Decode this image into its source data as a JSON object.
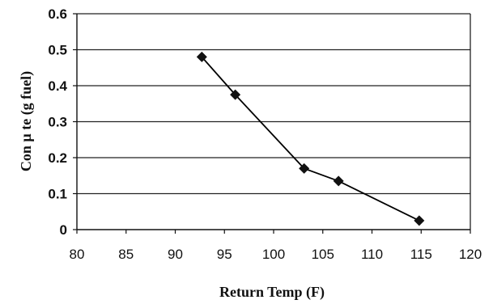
{
  "chart_data": {
    "type": "line",
    "title": "",
    "xlabel": "Return Temp (F)",
    "ylabel": "Con µ te (g fuel)",
    "xlim": [
      80,
      120
    ],
    "ylim": [
      0,
      0.6
    ],
    "x_ticks": [
      "80",
      "85",
      "90",
      "95",
      "100",
      "105",
      "110",
      "115",
      "120"
    ],
    "y_ticks": [
      "0",
      "0.1",
      "0.2",
      "0.3",
      "0.4",
      "0.5",
      "0.6"
    ],
    "grid": "horizontal",
    "series": [
      {
        "marker": "diamond",
        "x": [
          92.7,
          96.1,
          103.1,
          106.6,
          114.8
        ],
        "y": [
          0.48,
          0.375,
          0.17,
          0.135,
          0.025
        ]
      }
    ],
    "colors": {
      "line": "#000000",
      "marker": "#111111",
      "grid": "#222222"
    }
  }
}
